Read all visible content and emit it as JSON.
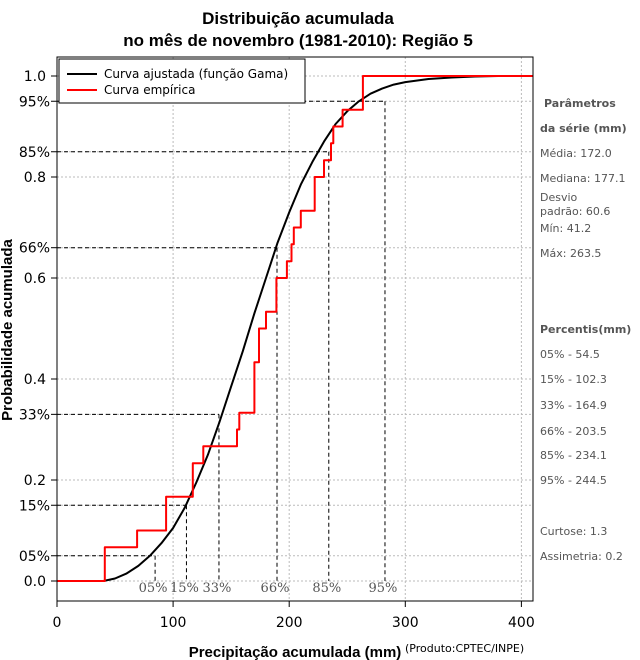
{
  "chart_data": {
    "type": "line",
    "title_line1": "Distribuição acumulada",
    "title_line2": "no mês de novembro (1981-2010): Região 5",
    "xlabel": "Precipitação acumulada (mm)",
    "ylabel": "Probabilidade acumulada",
    "credit": "(Produto:CPTEC/INPE)",
    "xlim": [
      0,
      410
    ],
    "ylim": [
      0,
      1
    ],
    "x_ticks": [
      0,
      100,
      200,
      300,
      400
    ],
    "y_ticks": [
      {
        "value": 0.0,
        "label": "0.0"
      },
      {
        "value": 0.2,
        "label": "0.2"
      },
      {
        "value": 0.4,
        "label": "0.4"
      },
      {
        "value": 0.6,
        "label": "0.6"
      },
      {
        "value": 0.8,
        "label": "0.8"
      },
      {
        "value": 1.0,
        "label": "1.0"
      }
    ],
    "percentile_y_labels": [
      {
        "value": 0.05,
        "label": "05%"
      },
      {
        "value": 0.15,
        "label": "15%"
      },
      {
        "value": 0.33,
        "label": "33%"
      },
      {
        "value": 0.66,
        "label": "66%"
      },
      {
        "value": 0.85,
        "label": "85%"
      },
      {
        "value": 0.95,
        "label": "95%"
      }
    ],
    "percentile_markers": [
      {
        "label": "05%",
        "prob": 0.05,
        "x": 84.5
      },
      {
        "label": "15%",
        "prob": 0.15,
        "x": 111.5
      },
      {
        "label": "33%",
        "prob": 0.33,
        "x": 139.5
      },
      {
        "label": "66%",
        "prob": 0.66,
        "x": 189.5
      },
      {
        "label": "85%",
        "prob": 0.85,
        "x": 234.1
      },
      {
        "label": "95%",
        "prob": 0.95,
        "x": 282.5
      }
    ],
    "legend": {
      "position": "top-left",
      "entries": [
        {
          "label": "Curva ajustada (função Gama)",
          "color": "#000000"
        },
        {
          "label": "Curva empírica",
          "color": "#ff0000"
        }
      ]
    },
    "series": [
      {
        "name": "Curva ajustada (função Gama)",
        "kind": "smooth",
        "color": "#000000",
        "points": [
          [
            40,
            0.0
          ],
          [
            50,
            0.005
          ],
          [
            60,
            0.015
          ],
          [
            70,
            0.03
          ],
          [
            80,
            0.05
          ],
          [
            90,
            0.075
          ],
          [
            100,
            0.105
          ],
          [
            110,
            0.145
          ],
          [
            120,
            0.195
          ],
          [
            130,
            0.25
          ],
          [
            140,
            0.315
          ],
          [
            150,
            0.385
          ],
          [
            160,
            0.455
          ],
          [
            170,
            0.53
          ],
          [
            180,
            0.6
          ],
          [
            190,
            0.67
          ],
          [
            200,
            0.73
          ],
          [
            210,
            0.785
          ],
          [
            220,
            0.83
          ],
          [
            230,
            0.87
          ],
          [
            240,
            0.905
          ],
          [
            250,
            0.93
          ],
          [
            260,
            0.95
          ],
          [
            270,
            0.965
          ],
          [
            280,
            0.975
          ],
          [
            290,
            0.983
          ],
          [
            300,
            0.988
          ],
          [
            320,
            0.994
          ],
          [
            340,
            0.997
          ],
          [
            360,
            0.999
          ],
          [
            380,
            1.0
          ],
          [
            410,
            1.0
          ]
        ]
      },
      {
        "name": "Curva empírica",
        "kind": "step",
        "color": "#ff0000",
        "points": [
          [
            0,
            0.0
          ],
          [
            41.2,
            0.0
          ],
          [
            41.2,
            0.067
          ],
          [
            69,
            0.067
          ],
          [
            69,
            0.1
          ],
          [
            94,
            0.1
          ],
          [
            94,
            0.167
          ],
          [
            117,
            0.167
          ],
          [
            117,
            0.233
          ],
          [
            126,
            0.233
          ],
          [
            126,
            0.267
          ],
          [
            155,
            0.267
          ],
          [
            155,
            0.3
          ],
          [
            157,
            0.3
          ],
          [
            157,
            0.333
          ],
          [
            170,
            0.333
          ],
          [
            170,
            0.433
          ],
          [
            174,
            0.433
          ],
          [
            174,
            0.5
          ],
          [
            180,
            0.5
          ],
          [
            180,
            0.533
          ],
          [
            189,
            0.533
          ],
          [
            189,
            0.6
          ],
          [
            198,
            0.6
          ],
          [
            198,
            0.633
          ],
          [
            202,
            0.633
          ],
          [
            202,
            0.667
          ],
          [
            204,
            0.667
          ],
          [
            204,
            0.7
          ],
          [
            210,
            0.7
          ],
          [
            210,
            0.733
          ],
          [
            222,
            0.733
          ],
          [
            222,
            0.8
          ],
          [
            230,
            0.8
          ],
          [
            230,
            0.833
          ],
          [
            236,
            0.833
          ],
          [
            236,
            0.867
          ],
          [
            238,
            0.867
          ],
          [
            238,
            0.9
          ],
          [
            246,
            0.9
          ],
          [
            246,
            0.933
          ],
          [
            263.5,
            0.933
          ],
          [
            263.5,
            1.0
          ],
          [
            410,
            1.0
          ]
        ]
      }
    ]
  },
  "side_panel": {
    "params_header_line1": "Parâmetros",
    "params_header_line2": "da série (mm)",
    "media": "Média: 172.0",
    "mediana": "Mediana: 177.1",
    "desvio_line1": "Desvio",
    "desvio_line2": "padrão: 60.6",
    "min": "Mín: 41.2",
    "max": "Máx: 263.5",
    "percentis_header": "Percentis(mm)",
    "p05": "05% - 54.5",
    "p15": "15% - 102.3",
    "p33": "33% - 164.9",
    "p66": "66% - 203.5",
    "p85": "85% - 234.1",
    "p95": "95% - 244.5",
    "curtose": "Curtose: 1.3",
    "assimetria": "Assimetria: 0.2"
  }
}
